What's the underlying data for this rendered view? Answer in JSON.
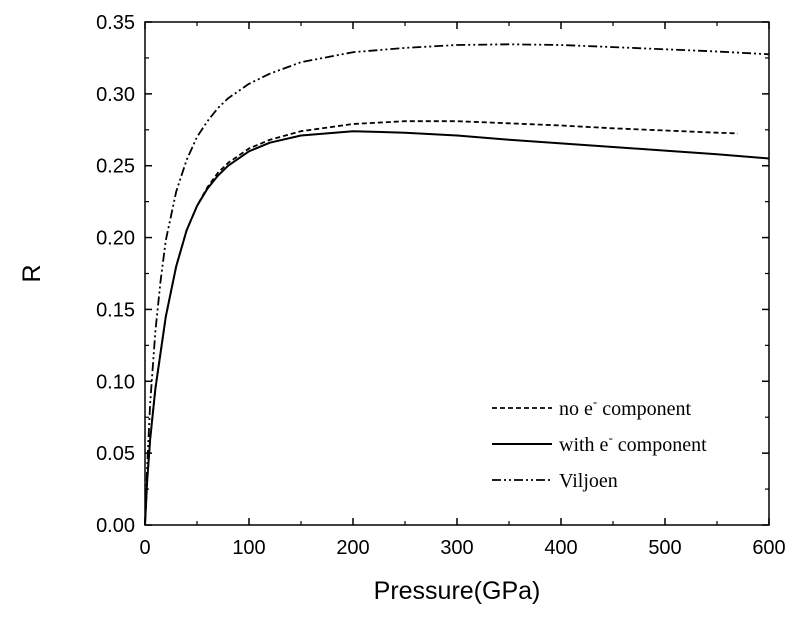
{
  "chart_data": {
    "type": "line",
    "title": "",
    "xlabel": "Pressure(GPa)",
    "ylabel": "R",
    "xlim": [
      0,
      600
    ],
    "ylim": [
      0,
      0.35
    ],
    "xticks": [
      0,
      100,
      200,
      300,
      400,
      500,
      600
    ],
    "yticks": [
      0.0,
      0.05,
      0.1,
      0.15,
      0.2,
      0.25,
      0.3,
      0.35
    ],
    "xtick_labels": [
      "0",
      "100",
      "200",
      "300",
      "400",
      "500",
      "600"
    ],
    "ytick_labels": [
      "0.00",
      "0.05",
      "0.10",
      "0.15",
      "0.20",
      "0.25",
      "0.30",
      "0.35"
    ],
    "grid": false,
    "legend_position": "bottom-right",
    "series": [
      {
        "name": "no e- component",
        "legend_base": "no e",
        "legend_sup": "-",
        "legend_rest": " component",
        "style": "dashed",
        "x": [
          0,
          2,
          5,
          10,
          15,
          20,
          30,
          40,
          50,
          60,
          70,
          80,
          100,
          120,
          150,
          200,
          250,
          300,
          350,
          400,
          450,
          500,
          550,
          570
        ],
        "y": [
          0,
          0.03,
          0.06,
          0.095,
          0.12,
          0.145,
          0.18,
          0.205,
          0.222,
          0.235,
          0.245,
          0.252,
          0.262,
          0.268,
          0.274,
          0.279,
          0.281,
          0.281,
          0.2795,
          0.278,
          0.276,
          0.2745,
          0.273,
          0.2725
        ]
      },
      {
        "name": "with e- component",
        "legend_base": "with e",
        "legend_sup": "-",
        "legend_rest": " component",
        "style": "solid",
        "x": [
          0,
          2,
          5,
          10,
          15,
          20,
          30,
          40,
          50,
          60,
          70,
          80,
          100,
          120,
          150,
          200,
          250,
          300,
          350,
          400,
          450,
          500,
          550,
          600
        ],
        "y": [
          0,
          0.03,
          0.06,
          0.095,
          0.12,
          0.145,
          0.18,
          0.205,
          0.222,
          0.234,
          0.243,
          0.25,
          0.26,
          0.266,
          0.271,
          0.274,
          0.273,
          0.271,
          0.268,
          0.2655,
          0.263,
          0.2605,
          0.258,
          0.255
        ]
      },
      {
        "name": "Viljoen",
        "legend_base": "Viljoen",
        "legend_sup": "",
        "legend_rest": "",
        "style": "dashdotdot",
        "x": [
          0,
          2,
          5,
          10,
          15,
          20,
          30,
          40,
          50,
          60,
          70,
          80,
          100,
          120,
          150,
          200,
          250,
          300,
          350,
          400,
          450,
          500,
          550,
          600
        ],
        "y": [
          0,
          0.04,
          0.085,
          0.135,
          0.17,
          0.198,
          0.232,
          0.254,
          0.27,
          0.281,
          0.29,
          0.297,
          0.307,
          0.314,
          0.322,
          0.329,
          0.332,
          0.334,
          0.3345,
          0.334,
          0.3325,
          0.331,
          0.3295,
          0.3275
        ]
      }
    ]
  }
}
